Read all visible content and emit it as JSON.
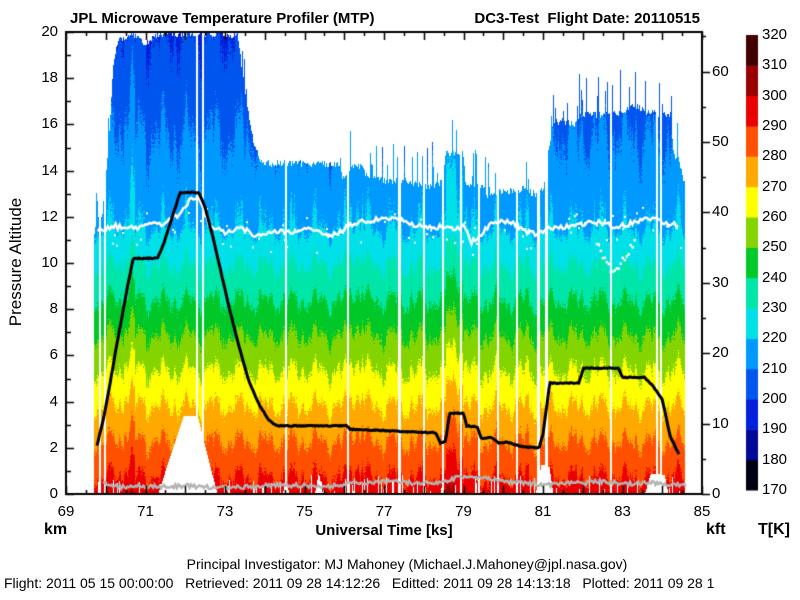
{
  "header": {
    "title_left": "JPL Microwave Temperature Profiler (MTP)",
    "title_right": "DC3-Test  Flight Date: 20110515"
  },
  "footer": {
    "pi_line": "Principal Investigator: MJ Mahoney (Michael.J.Mahoney@jpl.nasa.gov)",
    "status_line": "Flight: 2011 05 15 00:00:00   Retrieved: 2011 09 28 14:12:26   Editted: 2011 09 28 14:13:18   Plotted: 2011 09 28 1"
  },
  "chart_data": {
    "type": "heatmap",
    "title": "JPL Microwave Temperature Profiler (MTP)",
    "subtitle": "DC3-Test Flight Date: 20110515",
    "x_axis": {
      "label": "Universal Time [ks]",
      "unit_corner": "km",
      "range": [
        69,
        85
      ],
      "major_tick_labels": [
        69,
        71,
        73,
        75,
        77,
        79,
        81,
        83,
        85
      ],
      "minor_tick_step": 0.5
    },
    "y_axis_left": {
      "label": "Pressure Altitude",
      "unit": "km",
      "range": [
        0,
        20
      ],
      "major_tick_labels": [
        0,
        2,
        4,
        6,
        8,
        10,
        12,
        14,
        16,
        18,
        20
      ],
      "minor_tick_step": 1
    },
    "y_axis_right": {
      "unit": "kft",
      "range": [
        0,
        65.6
      ],
      "major_tick_labels": [
        0,
        10,
        20,
        30,
        40,
        50,
        60
      ],
      "minor_tick_step": 5
    },
    "colorbar": {
      "label": "T[K]",
      "tick_labels": [
        320,
        310,
        300,
        290,
        280,
        270,
        260,
        250,
        240,
        230,
        220,
        210,
        200,
        190,
        180,
        170
      ],
      "levels_k_low_to_high": [
        170,
        180,
        190,
        200,
        210,
        220,
        230,
        240,
        250,
        260,
        270,
        280,
        290,
        300,
        310,
        320
      ],
      "colors_low_to_high": [
        "#000014",
        "#000a96",
        "#0020dc",
        "#0055ee",
        "#0099ff",
        "#00e0e8",
        "#00e6a8",
        "#00c828",
        "#84d400",
        "#ffff00",
        "#ffa800",
        "#ff5000",
        "#ea0000",
        "#9a0000",
        "#400000"
      ]
    },
    "temperature_model": {
      "surface_k": 295,
      "lapse_k_per_km": 6.552,
      "tropopause_km": 11.6,
      "stratosphere_lapse_k_per_km": 2.3,
      "min_k": 196.5
    },
    "data_start_ks": 69.68,
    "data_end_ks": 84.55,
    "aircraft_altitude_km": [
      [
        69.78,
        2.1
      ],
      [
        69.85,
        2.6
      ],
      [
        69.95,
        3.3
      ],
      [
        70.1,
        4.7
      ],
      [
        70.25,
        6.2
      ],
      [
        70.4,
        7.6
      ],
      [
        70.55,
        9.0
      ],
      [
        70.69,
        10.2
      ],
      [
        71.3,
        10.2
      ],
      [
        71.45,
        10.8
      ],
      [
        71.6,
        11.6
      ],
      [
        71.75,
        12.4
      ],
      [
        71.87,
        13.05
      ],
      [
        72.34,
        13.05
      ],
      [
        72.5,
        12.4
      ],
      [
        72.7,
        11.1
      ],
      [
        72.9,
        9.6
      ],
      [
        73.1,
        8.1
      ],
      [
        73.35,
        6.4
      ],
      [
        73.6,
        4.9
      ],
      [
        73.85,
        3.9
      ],
      [
        74.1,
        3.2
      ],
      [
        74.3,
        2.95
      ],
      [
        76.05,
        2.95
      ],
      [
        76.15,
        2.8
      ],
      [
        77.0,
        2.75
      ],
      [
        77.5,
        2.7
      ],
      [
        78.3,
        2.65
      ],
      [
        78.42,
        2.2
      ],
      [
        78.55,
        2.3
      ],
      [
        78.65,
        3.5
      ],
      [
        79.0,
        3.5
      ],
      [
        79.08,
        2.95
      ],
      [
        79.35,
        2.9
      ],
      [
        79.45,
        2.4
      ],
      [
        79.7,
        2.45
      ],
      [
        79.9,
        2.2
      ],
      [
        80.1,
        2.25
      ],
      [
        80.45,
        2.05
      ],
      [
        80.9,
        2.0
      ],
      [
        81.0,
        2.6
      ],
      [
        81.17,
        4.8
      ],
      [
        81.9,
        4.8
      ],
      [
        82.02,
        5.45
      ],
      [
        82.9,
        5.45
      ],
      [
        83.0,
        5.05
      ],
      [
        83.55,
        5.05
      ],
      [
        83.75,
        4.7
      ],
      [
        84.0,
        4.1
      ],
      [
        84.1,
        3.3
      ],
      [
        84.2,
        2.5
      ],
      [
        84.45,
        1.6
      ]
    ],
    "tropopause_km": [
      [
        69.8,
        11.4
      ],
      [
        70.2,
        11.6
      ],
      [
        70.6,
        11.5
      ],
      [
        71.0,
        11.6
      ],
      [
        71.4,
        11.7
      ],
      [
        71.8,
        12.0
      ],
      [
        72.05,
        12.6
      ],
      [
        72.3,
        12.9
      ],
      [
        72.45,
        12.3
      ],
      [
        72.6,
        11.6
      ],
      [
        73.0,
        11.3
      ],
      [
        73.4,
        11.5
      ],
      [
        73.8,
        11.2
      ],
      [
        74.2,
        11.4
      ],
      [
        74.6,
        11.3
      ],
      [
        75.0,
        11.5
      ],
      [
        75.4,
        11.3
      ],
      [
        75.8,
        11.2
      ],
      [
        76.2,
        11.7
      ],
      [
        76.6,
        11.85
      ],
      [
        77.0,
        11.9
      ],
      [
        77.4,
        11.85
      ],
      [
        77.8,
        11.6
      ],
      [
        78.2,
        11.6
      ],
      [
        78.6,
        11.5
      ],
      [
        79.0,
        11.6
      ],
      [
        79.2,
        10.9
      ],
      [
        79.4,
        11.2
      ],
      [
        79.8,
        11.8
      ],
      [
        80.2,
        11.85
      ],
      [
        80.5,
        11.4
      ],
      [
        80.8,
        11.3
      ],
      [
        81.2,
        11.5
      ],
      [
        81.6,
        11.6
      ],
      [
        82.0,
        11.7
      ],
      [
        82.4,
        11.75
      ],
      [
        82.8,
        11.6
      ],
      [
        83.2,
        11.7
      ],
      [
        83.6,
        11.9
      ],
      [
        84.0,
        11.8
      ],
      [
        84.4,
        11.6
      ]
    ],
    "tropopause_secondary_km": [
      [
        82.35,
        10.9
      ],
      [
        82.5,
        10.3
      ],
      [
        82.7,
        9.7
      ],
      [
        82.9,
        9.9
      ],
      [
        83.1,
        10.4
      ],
      [
        83.3,
        10.9
      ]
    ],
    "surface_trace_km": [
      [
        69.95,
        0.5
      ],
      [
        70.3,
        0.3
      ],
      [
        70.9,
        0.35
      ],
      [
        71.5,
        0.3
      ],
      [
        72.0,
        0.35
      ],
      [
        72.5,
        0.3
      ],
      [
        73.0,
        0.28
      ],
      [
        73.5,
        0.3
      ],
      [
        74.0,
        0.35
      ],
      [
        74.5,
        0.4
      ],
      [
        75.0,
        0.35
      ],
      [
        75.5,
        0.3
      ],
      [
        76.0,
        0.4
      ],
      [
        76.5,
        0.5
      ],
      [
        77.0,
        0.55
      ],
      [
        77.5,
        0.5
      ],
      [
        78.0,
        0.45
      ],
      [
        78.5,
        0.55
      ],
      [
        78.8,
        0.7
      ],
      [
        79.2,
        0.75
      ],
      [
        79.6,
        0.65
      ],
      [
        80.0,
        0.55
      ],
      [
        80.4,
        0.5
      ],
      [
        80.8,
        0.45
      ],
      [
        81.2,
        0.4
      ],
      [
        81.6,
        0.5
      ],
      [
        82.0,
        0.45
      ],
      [
        82.4,
        0.55
      ],
      [
        82.8,
        0.5
      ],
      [
        83.2,
        0.45
      ],
      [
        83.6,
        0.5
      ],
      [
        84.0,
        0.45
      ],
      [
        84.4,
        0.4
      ],
      [
        84.6,
        0.35
      ]
    ],
    "field_top_km": [
      [
        69.68,
        11.0
      ],
      [
        69.75,
        11.8
      ],
      [
        69.9,
        12.2
      ],
      [
        70.0,
        14.0
      ],
      [
        70.08,
        15.8
      ],
      [
        70.18,
        18.6
      ],
      [
        70.28,
        19.6
      ],
      [
        70.5,
        19.8
      ],
      [
        70.7,
        19.9
      ],
      [
        71.0,
        19.5
      ],
      [
        71.2,
        19.9
      ],
      [
        72.0,
        19.95
      ],
      [
        73.3,
        19.9
      ],
      [
        73.42,
        18.4
      ],
      [
        73.55,
        16.8
      ],
      [
        73.7,
        15.3
      ],
      [
        73.85,
        14.6
      ],
      [
        74.0,
        14.35
      ],
      [
        75.85,
        14.3
      ],
      [
        75.95,
        13.7
      ],
      [
        76.15,
        14.2
      ],
      [
        76.45,
        14.2
      ],
      [
        76.6,
        13.6
      ],
      [
        76.8,
        13.8
      ],
      [
        77.1,
        13.5
      ],
      [
        77.45,
        13.6
      ],
      [
        77.8,
        13.45
      ],
      [
        78.1,
        13.3
      ],
      [
        78.4,
        13.4
      ],
      [
        78.55,
        14.75
      ],
      [
        78.8,
        14.85
      ],
      [
        78.97,
        14.8
      ],
      [
        79.05,
        13.4
      ],
      [
        79.3,
        13.35
      ],
      [
        79.5,
        13.3
      ],
      [
        79.6,
        12.95
      ],
      [
        79.9,
        13.1
      ],
      [
        80.2,
        13.15
      ],
      [
        80.5,
        13.2
      ],
      [
        80.8,
        13.0
      ],
      [
        81.0,
        13.2
      ],
      [
        81.12,
        14.8
      ],
      [
        81.25,
        16.1
      ],
      [
        81.5,
        16.15
      ],
      [
        81.75,
        16.0
      ],
      [
        81.95,
        16.45
      ],
      [
        82.2,
        16.5
      ],
      [
        82.5,
        16.4
      ],
      [
        82.8,
        16.5
      ],
      [
        83.05,
        16.55
      ],
      [
        83.3,
        16.85
      ],
      [
        83.55,
        16.6
      ],
      [
        83.85,
        16.5
      ],
      [
        84.05,
        16.45
      ],
      [
        84.2,
        16.4
      ],
      [
        84.28,
        14.6
      ],
      [
        84.4,
        14.5
      ],
      [
        84.55,
        13.5
      ]
    ],
    "data_gaps_ks": [
      [
        69.82,
        69.87
      ],
      [
        69.95,
        70.0
      ],
      [
        72.27,
        72.32
      ],
      [
        72.42,
        72.47
      ],
      [
        74.5,
        74.55
      ],
      [
        76.05,
        76.1
      ],
      [
        77.35,
        77.42
      ],
      [
        77.97,
        78.03
      ],
      [
        78.44,
        78.5
      ],
      [
        78.9,
        78.96
      ],
      [
        79.35,
        79.41
      ],
      [
        79.82,
        79.88
      ],
      [
        80.3,
        80.36
      ],
      [
        80.84,
        80.9
      ],
      [
        81.04,
        81.12
      ],
      [
        82.67,
        82.73
      ],
      [
        83.82,
        83.87
      ],
      [
        83.93,
        83.98
      ]
    ],
    "bottom_gap_polygons_km": [
      [
        [
          71.3,
          0
        ],
        [
          71.95,
          3.4
        ],
        [
          72.3,
          3.4
        ],
        [
          72.8,
          0
        ]
      ],
      [
        [
          74.45,
          0
        ],
        [
          74.52,
          1.0
        ],
        [
          74.6,
          0
        ]
      ],
      [
        [
          75.25,
          0
        ],
        [
          75.35,
          0.95
        ],
        [
          75.45,
          0
        ]
      ],
      [
        [
          80.8,
          0
        ],
        [
          80.95,
          1.3
        ],
        [
          81.15,
          1.2
        ],
        [
          81.25,
          0
        ]
      ],
      [
        [
          83.55,
          0
        ],
        [
          83.7,
          0.9
        ],
        [
          84.05,
          0.85
        ],
        [
          84.15,
          0
        ]
      ]
    ],
    "warm_column_anomalies": [
      {
        "t0": 78.55,
        "t1": 78.98,
        "dT": 7
      },
      {
        "t0": 76.1,
        "t1": 76.45,
        "dT": 3
      },
      {
        "t0": 70.45,
        "t1": 70.72,
        "dT": 4
      }
    ]
  }
}
